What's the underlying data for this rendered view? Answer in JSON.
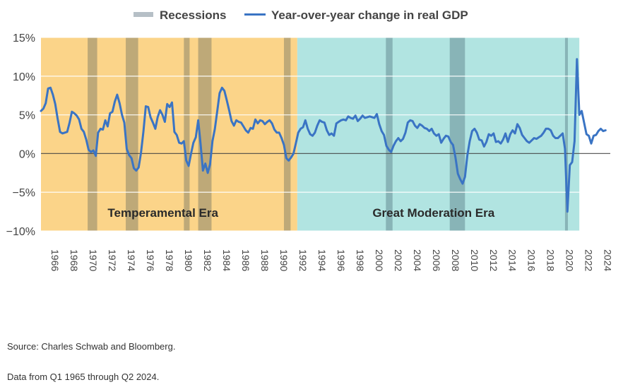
{
  "chart_data": {
    "type": "line",
    "legend": [
      {
        "name": "Recessions",
        "color": "#b6bfc6",
        "kind": "band"
      },
      {
        "name": "Year-over-year change in real GDP",
        "color": "#3a74c4",
        "kind": "line"
      }
    ],
    "legend_placement": "top-center",
    "ylim": [
      -10,
      15
    ],
    "yticks": [
      15,
      10,
      5,
      0,
      -5,
      -10
    ],
    "ytick_labels": [
      "15%",
      "10%",
      "5%",
      "0%",
      "−5%",
      "−10%"
    ],
    "xlim": [
      1965.0,
      2024.75
    ],
    "xticks": [
      1966,
      1968,
      1970,
      1972,
      1974,
      1976,
      1978,
      1980,
      1982,
      1984,
      1986,
      1988,
      1990,
      1992,
      1994,
      1996,
      1998,
      2000,
      2002,
      2004,
      2006,
      2008,
      2010,
      2012,
      2014,
      2016,
      2018,
      2020,
      2022,
      2024
    ],
    "eras": [
      {
        "name": "Temperamental Era",
        "start": 1965.0,
        "end": 1991.9,
        "color": "#fbd489"
      },
      {
        "name": "Great Moderation Era",
        "start": 1991.9,
        "end": 2021.5,
        "color": "#b1e4e1"
      }
    ],
    "recessions": [
      {
        "start": 1969.9,
        "end": 1970.9
      },
      {
        "start": 1973.9,
        "end": 1975.2
      },
      {
        "start": 1980.0,
        "end": 1980.6
      },
      {
        "start": 1981.5,
        "end": 1982.9
      },
      {
        "start": 1990.5,
        "end": 1991.2
      },
      {
        "start": 2001.2,
        "end": 2001.9
      },
      {
        "start": 2007.9,
        "end": 2009.5
      },
      {
        "start": 2020.0,
        "end": 2020.3
      }
    ],
    "series": [
      {
        "name": "Year-over-year change in real GDP",
        "color": "#3a74c4",
        "points": [
          [
            1965.0,
            5.5
          ],
          [
            1965.25,
            5.8
          ],
          [
            1965.5,
            6.5
          ],
          [
            1965.75,
            8.4
          ],
          [
            1966.0,
            8.5
          ],
          [
            1966.25,
            7.6
          ],
          [
            1966.5,
            6.4
          ],
          [
            1966.75,
            4.5
          ],
          [
            1967.0,
            2.8
          ],
          [
            1967.25,
            2.6
          ],
          [
            1967.5,
            2.7
          ],
          [
            1967.75,
            2.8
          ],
          [
            1968.0,
            4.0
          ],
          [
            1968.25,
            5.4
          ],
          [
            1968.5,
            5.2
          ],
          [
            1968.75,
            4.9
          ],
          [
            1969.0,
            4.4
          ],
          [
            1969.25,
            3.2
          ],
          [
            1969.5,
            2.8
          ],
          [
            1969.75,
            1.8
          ],
          [
            1970.0,
            0.5
          ],
          [
            1970.25,
            0.2
          ],
          [
            1970.5,
            0.4
          ],
          [
            1970.75,
            -0.3
          ],
          [
            1971.0,
            2.7
          ],
          [
            1971.25,
            3.2
          ],
          [
            1971.5,
            3.1
          ],
          [
            1971.75,
            4.3
          ],
          [
            1972.0,
            3.5
          ],
          [
            1972.25,
            5.2
          ],
          [
            1972.5,
            5.4
          ],
          [
            1972.75,
            6.7
          ],
          [
            1973.0,
            7.6
          ],
          [
            1973.25,
            6.5
          ],
          [
            1973.5,
            5.0
          ],
          [
            1973.75,
            4.0
          ],
          [
            1974.0,
            0.6
          ],
          [
            1974.25,
            -0.2
          ],
          [
            1974.5,
            -0.6
          ],
          [
            1974.75,
            -1.9
          ],
          [
            1975.0,
            -2.2
          ],
          [
            1975.25,
            -1.8
          ],
          [
            1975.5,
            0.1
          ],
          [
            1975.75,
            2.8
          ],
          [
            1976.0,
            6.1
          ],
          [
            1976.25,
            6.0
          ],
          [
            1976.5,
            4.7
          ],
          [
            1976.75,
            4.0
          ],
          [
            1977.0,
            3.2
          ],
          [
            1977.25,
            4.7
          ],
          [
            1977.5,
            5.6
          ],
          [
            1977.75,
            5.0
          ],
          [
            1978.0,
            4.1
          ],
          [
            1978.25,
            6.4
          ],
          [
            1978.5,
            6.0
          ],
          [
            1978.75,
            6.6
          ],
          [
            1979.0,
            2.8
          ],
          [
            1979.25,
            2.4
          ],
          [
            1979.5,
            1.4
          ],
          [
            1979.75,
            1.3
          ],
          [
            1980.0,
            1.6
          ],
          [
            1980.25,
            -0.9
          ],
          [
            1980.5,
            -1.6
          ],
          [
            1980.75,
            0.0
          ],
          [
            1981.0,
            1.4
          ],
          [
            1981.25,
            2.1
          ],
          [
            1981.5,
            4.3
          ],
          [
            1981.75,
            1.3
          ],
          [
            1982.0,
            -2.2
          ],
          [
            1982.25,
            -1.3
          ],
          [
            1982.5,
            -2.5
          ],
          [
            1982.75,
            -1.4
          ],
          [
            1983.0,
            1.6
          ],
          [
            1983.25,
            3.2
          ],
          [
            1983.5,
            5.5
          ],
          [
            1983.75,
            7.8
          ],
          [
            1984.0,
            8.5
          ],
          [
            1984.25,
            8.1
          ],
          [
            1984.5,
            6.9
          ],
          [
            1984.75,
            5.6
          ],
          [
            1985.0,
            4.2
          ],
          [
            1985.25,
            3.6
          ],
          [
            1985.5,
            4.3
          ],
          [
            1985.75,
            4.1
          ],
          [
            1986.0,
            4.0
          ],
          [
            1986.25,
            3.5
          ],
          [
            1986.5,
            3.0
          ],
          [
            1986.75,
            2.7
          ],
          [
            1987.0,
            3.3
          ],
          [
            1987.25,
            3.2
          ],
          [
            1987.5,
            4.4
          ],
          [
            1987.75,
            3.9
          ],
          [
            1988.0,
            4.3
          ],
          [
            1988.25,
            4.2
          ],
          [
            1988.5,
            3.8
          ],
          [
            1988.75,
            4.1
          ],
          [
            1989.0,
            4.3
          ],
          [
            1989.25,
            3.9
          ],
          [
            1989.5,
            3.1
          ],
          [
            1989.75,
            2.7
          ],
          [
            1990.0,
            2.7
          ],
          [
            1990.25,
            2.0
          ],
          [
            1990.5,
            1.1
          ],
          [
            1990.75,
            -0.6
          ],
          [
            1991.0,
            -0.9
          ],
          [
            1991.25,
            -0.5
          ],
          [
            1991.5,
            0.0
          ],
          [
            1991.75,
            1.3
          ],
          [
            1992.0,
            2.7
          ],
          [
            1992.25,
            3.2
          ],
          [
            1992.5,
            3.4
          ],
          [
            1992.75,
            4.3
          ],
          [
            1993.0,
            3.2
          ],
          [
            1993.25,
            2.5
          ],
          [
            1993.5,
            2.3
          ],
          [
            1993.75,
            2.7
          ],
          [
            1994.0,
            3.6
          ],
          [
            1994.25,
            4.3
          ],
          [
            1994.5,
            4.1
          ],
          [
            1994.75,
            4.0
          ],
          [
            1995.0,
            3.0
          ],
          [
            1995.25,
            2.4
          ],
          [
            1995.5,
            2.6
          ],
          [
            1995.75,
            2.3
          ],
          [
            1996.0,
            3.9
          ],
          [
            1996.25,
            4.1
          ],
          [
            1996.5,
            4.3
          ],
          [
            1996.75,
            4.4
          ],
          [
            1997.0,
            4.3
          ],
          [
            1997.25,
            4.8
          ],
          [
            1997.5,
            4.6
          ],
          [
            1997.75,
            4.5
          ],
          [
            1998.0,
            4.9
          ],
          [
            1998.25,
            4.2
          ],
          [
            1998.5,
            4.5
          ],
          [
            1998.75,
            4.9
          ],
          [
            1999.0,
            4.6
          ],
          [
            1999.25,
            4.7
          ],
          [
            1999.5,
            4.8
          ],
          [
            1999.75,
            4.7
          ],
          [
            2000.0,
            4.6
          ],
          [
            2000.25,
            5.1
          ],
          [
            2000.5,
            3.8
          ],
          [
            2000.75,
            2.9
          ],
          [
            2001.0,
            2.4
          ],
          [
            2001.25,
            1.0
          ],
          [
            2001.5,
            0.5
          ],
          [
            2001.75,
            0.2
          ],
          [
            2002.0,
            1.0
          ],
          [
            2002.25,
            1.6
          ],
          [
            2002.5,
            2.0
          ],
          [
            2002.75,
            1.6
          ],
          [
            2003.0,
            1.9
          ],
          [
            2003.25,
            2.7
          ],
          [
            2003.5,
            4.0
          ],
          [
            2003.75,
            4.3
          ],
          [
            2004.0,
            4.2
          ],
          [
            2004.25,
            3.6
          ],
          [
            2004.5,
            3.3
          ],
          [
            2004.75,
            3.8
          ],
          [
            2005.0,
            3.6
          ],
          [
            2005.25,
            3.3
          ],
          [
            2005.5,
            3.2
          ],
          [
            2005.75,
            2.9
          ],
          [
            2006.0,
            3.2
          ],
          [
            2006.25,
            2.6
          ],
          [
            2006.5,
            2.3
          ],
          [
            2006.75,
            2.5
          ],
          [
            2007.0,
            1.4
          ],
          [
            2007.25,
            1.9
          ],
          [
            2007.5,
            2.3
          ],
          [
            2007.75,
            2.2
          ],
          [
            2008.0,
            1.5
          ],
          [
            2008.25,
            1.1
          ],
          [
            2008.5,
            -0.5
          ],
          [
            2008.75,
            -2.6
          ],
          [
            2009.0,
            -3.3
          ],
          [
            2009.25,
            -3.9
          ],
          [
            2009.5,
            -3.0
          ],
          [
            2009.75,
            -0.2
          ],
          [
            2010.0,
            1.6
          ],
          [
            2010.25,
            2.9
          ],
          [
            2010.5,
            3.2
          ],
          [
            2010.75,
            2.7
          ],
          [
            2011.0,
            1.8
          ],
          [
            2011.25,
            1.7
          ],
          [
            2011.5,
            0.9
          ],
          [
            2011.75,
            1.5
          ],
          [
            2012.0,
            2.5
          ],
          [
            2012.25,
            2.3
          ],
          [
            2012.5,
            2.6
          ],
          [
            2012.75,
            1.5
          ],
          [
            2013.0,
            1.6
          ],
          [
            2013.25,
            1.3
          ],
          [
            2013.5,
            1.8
          ],
          [
            2013.75,
            2.6
          ],
          [
            2014.0,
            1.5
          ],
          [
            2014.25,
            2.5
          ],
          [
            2014.5,
            3.0
          ],
          [
            2014.75,
            2.6
          ],
          [
            2015.0,
            3.8
          ],
          [
            2015.25,
            3.3
          ],
          [
            2015.5,
            2.4
          ],
          [
            2015.75,
            2.0
          ],
          [
            2016.0,
            1.6
          ],
          [
            2016.25,
            1.4
          ],
          [
            2016.5,
            1.7
          ],
          [
            2016.75,
            2.0
          ],
          [
            2017.0,
            1.9
          ],
          [
            2017.25,
            2.1
          ],
          [
            2017.5,
            2.3
          ],
          [
            2017.75,
            2.7
          ],
          [
            2018.0,
            3.2
          ],
          [
            2018.25,
            3.2
          ],
          [
            2018.5,
            3.0
          ],
          [
            2018.75,
            2.3
          ],
          [
            2019.0,
            2.0
          ],
          [
            2019.25,
            2.0
          ],
          [
            2019.5,
            2.3
          ],
          [
            2019.75,
            2.6
          ],
          [
            2020.0,
            0.6
          ],
          [
            2020.25,
            -7.5
          ],
          [
            2020.5,
            -1.5
          ],
          [
            2020.75,
            -1.1
          ],
          [
            2021.0,
            1.6
          ],
          [
            2021.25,
            12.2
          ],
          [
            2021.5,
            5.0
          ],
          [
            2021.75,
            5.5
          ],
          [
            2022.0,
            4.0
          ],
          [
            2022.25,
            2.5
          ],
          [
            2022.5,
            2.3
          ],
          [
            2022.75,
            1.3
          ],
          [
            2023.0,
            2.3
          ],
          [
            2023.25,
            2.4
          ],
          [
            2023.5,
            2.9
          ],
          [
            2023.75,
            3.2
          ],
          [
            2024.0,
            2.9
          ],
          [
            2024.25,
            3.0
          ]
        ]
      }
    ]
  },
  "footer": {
    "source": "Source: Charles Schwab and Bloomberg.",
    "data_range": "Data from Q1 1965 through Q2 2024."
  }
}
